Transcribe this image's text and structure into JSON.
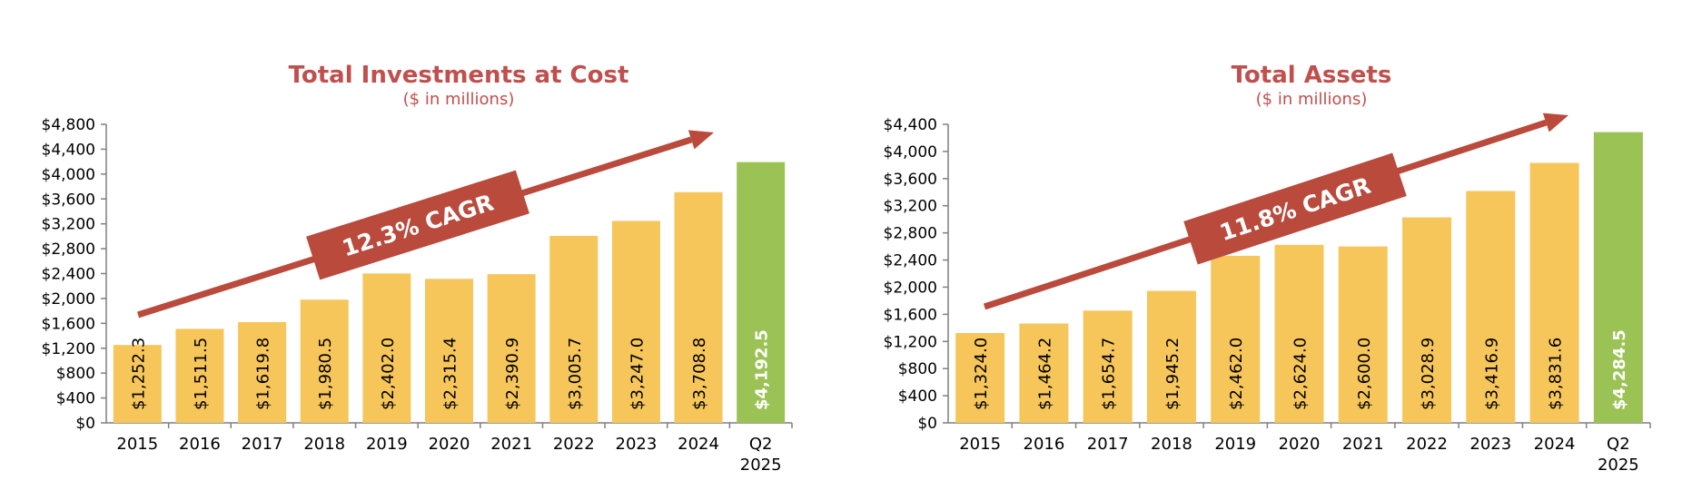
{
  "colors": {
    "title": "#C0504D",
    "bar": "#F6C65B",
    "highlight": "#9BC254",
    "arrow": "#B94A3C",
    "axis": "#7F7F7F",
    "text": "#000000",
    "highlight_label": "#FFFFFF"
  },
  "chart_data": [
    {
      "type": "bar",
      "title": "Total Investments at Cost",
      "subtitle": "($ in millions)",
      "categories": [
        "2015",
        "2016",
        "2017",
        "2018",
        "2019",
        "2020",
        "2021",
        "2022",
        "2023",
        "2024",
        "Q2 2025"
      ],
      "values": [
        1252.3,
        1511.5,
        1619.8,
        1980.5,
        2402.0,
        2315.4,
        2390.9,
        3005.7,
        3247.0,
        3708.8,
        4192.5
      ],
      "data_labels": [
        "$1,252.3",
        "$1,511.5",
        "$1,619.8",
        "$1,980.5",
        "$2,402.0",
        "$2,315.4",
        "$2,390.9",
        "$3,005.7",
        "$3,247.0",
        "$3,708.8",
        "$4,192.5"
      ],
      "highlight_index": 10,
      "ylim": [
        0,
        4800
      ],
      "yticks": [
        0,
        400,
        800,
        1200,
        1600,
        2000,
        2400,
        2800,
        3200,
        3600,
        4000,
        4400,
        4800
      ],
      "ytick_labels": [
        "$0",
        "$400",
        "$800",
        "$1,200",
        "$1,600",
        "$2,000",
        "$2,400",
        "$2,800",
        "$3,200",
        "$3,600",
        "$4,000",
        "$4,400",
        "$4,800"
      ],
      "annotation": "12.3% CAGR",
      "xlabel": "",
      "ylabel": "",
      "grid": false
    },
    {
      "type": "bar",
      "title": "Total Assets",
      "subtitle": "($ in millions)",
      "categories": [
        "2015",
        "2016",
        "2017",
        "2018",
        "2019",
        "2020",
        "2021",
        "2022",
        "2023",
        "2024",
        "Q2 2025"
      ],
      "values": [
        1324.0,
        1464.2,
        1654.7,
        1945.2,
        2462.0,
        2624.0,
        2600.0,
        3028.9,
        3416.9,
        3831.6,
        4284.5
      ],
      "data_labels": [
        "$1,324.0",
        "$1,464.2",
        "$1,654.7",
        "$1,945.2",
        "$2,462.0",
        "$2,624.0",
        "$2,600.0",
        "$3,028.9",
        "$3,416.9",
        "$3,831.6",
        "$4,284.5"
      ],
      "highlight_index": 10,
      "ylim": [
        0,
        4400
      ],
      "yticks": [
        0,
        400,
        800,
        1200,
        1600,
        2000,
        2400,
        2800,
        3200,
        3600,
        4000,
        4400
      ],
      "ytick_labels": [
        "$0",
        "$400",
        "$800",
        "$1,200",
        "$1,600",
        "$2,000",
        "$2,400",
        "$2,800",
        "$3,200",
        "$3,600",
        "$4,000",
        "$4,400"
      ],
      "annotation": "11.8% CAGR",
      "xlabel": "",
      "ylabel": "",
      "grid": false
    }
  ]
}
